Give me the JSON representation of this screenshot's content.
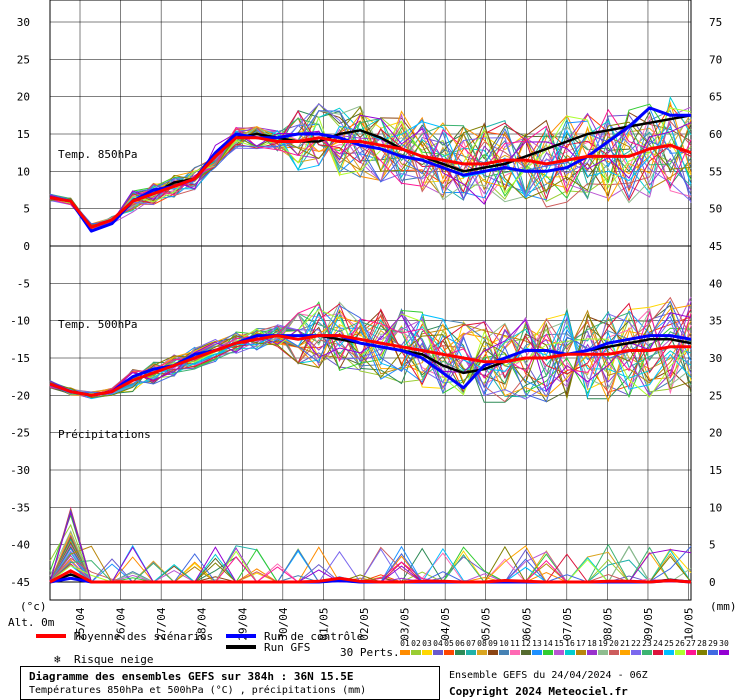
{
  "chart_data": {
    "type": "line",
    "panels": [
      {
        "label": "Temp. 850hPa",
        "y_right_range": [
          45,
          75
        ]
      },
      {
        "label": "Temp. 500hPa",
        "y_right_range": [
          20,
          45
        ]
      },
      {
        "label": "Précipitations",
        "y_right_range": [
          0,
          15
        ]
      }
    ],
    "left_axis_ticks": [
      30,
      25,
      20,
      15,
      10,
      5,
      0,
      -5,
      -10,
      -15,
      -20,
      -25,
      -30,
      -35,
      -40,
      -45
    ],
    "right_axis_ticks": [
      75,
      70,
      65,
      60,
      55,
      50,
      45,
      40,
      35,
      30,
      25,
      20,
      15,
      10,
      5,
      0
    ],
    "x_dates": [
      "25/04",
      "26/04",
      "27/04",
      "28/04",
      "29/04",
      "30/04",
      "01/05",
      "02/05",
      "03/05",
      "04/05",
      "05/05",
      "06/05",
      "07/05",
      "08/05",
      "09/05",
      "10/05"
    ],
    "left_unit": "(°c)",
    "right_unit": "(mm)",
    "altitude": "Alt. 0m",
    "series": [
      {
        "name": "Moyenne des scénarios",
        "color": "#ff0000",
        "t850": [
          6.5,
          6,
          2.5,
          3.5,
          6,
          7,
          8,
          9,
          12,
          14.5,
          14.5,
          14,
          14,
          14.5,
          14,
          14,
          13.5,
          13,
          12,
          11.5,
          11,
          11,
          11.5,
          11.5,
          11,
          11.5,
          12,
          12,
          12,
          13,
          13.5,
          12.5
        ],
        "t500": [
          -18.5,
          -19.5,
          -20,
          -19.5,
          -18,
          -17,
          -16,
          -15,
          -14,
          -13,
          -12.5,
          -12,
          -12.5,
          -12,
          -12,
          -12.5,
          -13,
          -13.5,
          -14,
          -14.5,
          -15,
          -15.5,
          -15.5,
          -15,
          -15,
          -14.5,
          -14.5,
          -14.5,
          -14,
          -14,
          -13.5,
          -13.5
        ],
        "precip": [
          0,
          1.5,
          0,
          0,
          0,
          0,
          0,
          0,
          0,
          0,
          0,
          0,
          0,
          0.1,
          0.5,
          0.1,
          0,
          0,
          0.1,
          0.1,
          0,
          0,
          0.2,
          0.1,
          0,
          0,
          0,
          0.1,
          0.1,
          0,
          0.2,
          0
        ]
      },
      {
        "name": "Run de contrôle",
        "color": "#0000ff",
        "t850": [
          6.5,
          6,
          2,
          3,
          6,
          7.5,
          8,
          9,
          12.5,
          15,
          14.5,
          14.5,
          15,
          15,
          14.5,
          13.5,
          13,
          12,
          11.5,
          10.5,
          9.5,
          10,
          10.5,
          10,
          10,
          10.5,
          12,
          14,
          16,
          18.5,
          17.5,
          17.5
        ],
        "t500": [
          -18.5,
          -19.5,
          -20,
          -19.5,
          -17.5,
          -16.5,
          -16,
          -14.5,
          -14,
          -13,
          -12,
          -12,
          -12,
          -12,
          -12,
          -13,
          -13.5,
          -14,
          -15,
          -17,
          -19,
          -16,
          -15,
          -14,
          -14,
          -14.5,
          -14,
          -13,
          -12.5,
          -12,
          -12,
          -12.5
        ],
        "precip": [
          0,
          0.5,
          0,
          0,
          0,
          0,
          0,
          0,
          0,
          0,
          0,
          0,
          0,
          0,
          0.2,
          0,
          0,
          0,
          0,
          0,
          0,
          0,
          0,
          0,
          0,
          0,
          0,
          0,
          0,
          0,
          0.2,
          0
        ]
      },
      {
        "name": "Run GFS",
        "color": "#000000",
        "t850": [
          6.5,
          6,
          2.5,
          3.5,
          6,
          7,
          8.5,
          9,
          12,
          14.5,
          15,
          14.5,
          14,
          14,
          15,
          15.5,
          14.5,
          13,
          12,
          11,
          10,
          10.5,
          11,
          12,
          13,
          14,
          15,
          15.5,
          16,
          16.5,
          17,
          17.5
        ],
        "t500": [
          -18.5,
          -19.5,
          -20,
          -19.5,
          -18,
          -17,
          -16,
          -14.5,
          -14,
          -13,
          -12.5,
          -12,
          -12.5,
          -12,
          -12.5,
          -13,
          -13.5,
          -14,
          -14.5,
          -16,
          -17,
          -16.5,
          -15.5,
          -15,
          -15,
          -14.5,
          -14,
          -13.5,
          -13,
          -12.5,
          -12.5,
          -13
        ],
        "precip": [
          0,
          1,
          0,
          0,
          0,
          0,
          0,
          0,
          0,
          0,
          0,
          0,
          0,
          0,
          0.2,
          0,
          0,
          0,
          0,
          0,
          0,
          0,
          0,
          0,
          0,
          0,
          0,
          0,
          0,
          0,
          0.3,
          0
        ]
      }
    ],
    "perturbations_label": "30 Perts.",
    "perturbation_ids": [
      "01",
      "02",
      "03",
      "04",
      "05",
      "06",
      "07",
      "08",
      "09",
      "10",
      "11",
      "12",
      "13",
      "14",
      "15",
      "16",
      "17",
      "18",
      "19",
      "20",
      "21",
      "22",
      "23",
      "24",
      "25",
      "26",
      "27",
      "28",
      "29",
      "30"
    ],
    "perturbation_colors": [
      "#ff8c00",
      "#9acd32",
      "#ffd700",
      "#6a5acd",
      "#ff4500",
      "#2e8b57",
      "#20b2aa",
      "#daa520",
      "#8b4513",
      "#4682b4",
      "#ff69b4",
      "#556b2f",
      "#1e90ff",
      "#32cd32",
      "#ba55d3",
      "#00ced1",
      "#b8860b",
      "#9932cc",
      "#8fbc8f",
      "#cd5c5c",
      "#ffa500",
      "#7b68ee",
      "#3cb371",
      "#dc143c",
      "#00bfff",
      "#adff2f",
      "#ff1493",
      "#808000",
      "#4169e1",
      "#9400d3"
    ],
    "snow_risk_label": "Risque neige"
  },
  "footer": {
    "title": "Diagramme des ensembles GEFS sur 384h : 36N 15.5E",
    "subtitle": "Températures 850hPa et 500hPa (°C) , précipitations (mm)",
    "ensemble_info": "Ensemble GEFS du 24/04/2024 - 06Z",
    "copyright": "Copyright 2024 Meteociel.fr"
  },
  "colors": {
    "grid": "#000000",
    "background": "#ffffff"
  }
}
